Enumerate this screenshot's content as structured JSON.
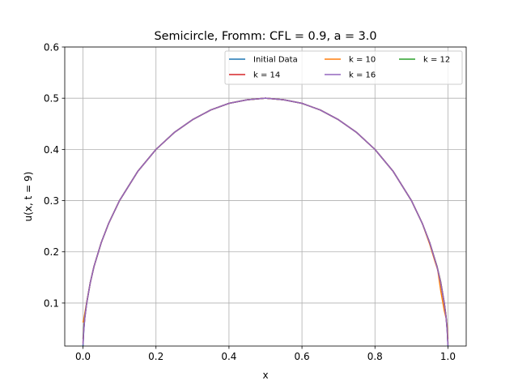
{
  "chart_data": {
    "type": "line",
    "title": "Semicircle, Fromm: CFL = 0.9, a = 3.0",
    "xlabel": "x",
    "ylabel": "u(x, t = 9)",
    "xlim": [
      -0.05,
      1.05
    ],
    "ylim": [
      0.016,
      0.6
    ],
    "xticks": [
      0.0,
      0.2,
      0.4,
      0.6,
      0.8,
      1.0
    ],
    "xtick_labels": [
      "0.0",
      "0.2",
      "0.4",
      "0.6",
      "0.8",
      "1.0"
    ],
    "yticks": [
      0.1,
      0.2,
      0.3,
      0.4,
      0.5,
      0.6
    ],
    "ytick_labels": [
      "0.1",
      "0.2",
      "0.3",
      "0.4",
      "0.5",
      "0.6"
    ],
    "grid": true,
    "legend_position": "top-right",
    "legend_columns": 3,
    "series": [
      {
        "name": "Initial Data",
        "color": "#1f77b4",
        "x": [
          0.0,
          0.002,
          0.005,
          0.01,
          0.02,
          0.03,
          0.05,
          0.07,
          0.1,
          0.15,
          0.2,
          0.25,
          0.3,
          0.35,
          0.4,
          0.45,
          0.5,
          0.55,
          0.6,
          0.65,
          0.7,
          0.75,
          0.8,
          0.85,
          0.9,
          0.93,
          0.95,
          0.97,
          0.98,
          0.99,
          0.995,
          0.998,
          1.0
        ],
        "y": [
          0.016,
          0.045,
          0.071,
          0.099,
          0.14,
          0.171,
          0.218,
          0.255,
          0.3,
          0.357,
          0.4,
          0.433,
          0.458,
          0.477,
          0.49,
          0.497,
          0.5,
          0.497,
          0.49,
          0.477,
          0.458,
          0.433,
          0.4,
          0.357,
          0.3,
          0.255,
          0.218,
          0.171,
          0.14,
          0.099,
          0.071,
          0.045,
          0.016
        ]
      },
      {
        "name": "k = 10",
        "color": "#ff7f0e",
        "x": [
          0.0,
          0.002,
          0.005,
          0.01,
          0.02,
          0.03,
          0.05,
          0.07,
          0.1,
          0.15,
          0.2,
          0.25,
          0.3,
          0.35,
          0.4,
          0.45,
          0.5,
          0.55,
          0.6,
          0.65,
          0.7,
          0.75,
          0.8,
          0.85,
          0.9,
          0.93,
          0.95,
          0.965,
          0.972,
          0.98,
          0.99,
          0.995,
          0.998,
          1.0
        ],
        "y": [
          0.062,
          0.068,
          0.08,
          0.101,
          0.14,
          0.171,
          0.218,
          0.255,
          0.3,
          0.357,
          0.4,
          0.433,
          0.458,
          0.477,
          0.49,
          0.497,
          0.5,
          0.497,
          0.49,
          0.477,
          0.458,
          0.433,
          0.4,
          0.357,
          0.3,
          0.255,
          0.215,
          0.18,
          0.165,
          0.125,
          0.085,
          0.07,
          0.055,
          0.03
        ]
      },
      {
        "name": "k = 12",
        "color": "#2ca02c",
        "x": [
          0.0,
          0.002,
          0.005,
          0.01,
          0.02,
          0.03,
          0.05,
          0.07,
          0.1,
          0.15,
          0.2,
          0.25,
          0.3,
          0.35,
          0.4,
          0.45,
          0.5,
          0.55,
          0.6,
          0.65,
          0.7,
          0.75,
          0.8,
          0.85,
          0.9,
          0.93,
          0.95,
          0.97,
          0.98,
          0.99,
          0.995,
          0.998,
          1.0
        ],
        "y": [
          0.03,
          0.052,
          0.074,
          0.1,
          0.14,
          0.171,
          0.218,
          0.255,
          0.3,
          0.357,
          0.4,
          0.433,
          0.458,
          0.477,
          0.49,
          0.497,
          0.5,
          0.497,
          0.49,
          0.477,
          0.458,
          0.433,
          0.4,
          0.357,
          0.3,
          0.255,
          0.218,
          0.172,
          0.142,
          0.1,
          0.073,
          0.05,
          0.022
        ]
      },
      {
        "name": "k = 14",
        "color": "#d62728",
        "x": [
          0.0,
          0.002,
          0.005,
          0.01,
          0.02,
          0.03,
          0.05,
          0.07,
          0.1,
          0.15,
          0.2,
          0.25,
          0.3,
          0.35,
          0.4,
          0.45,
          0.5,
          0.55,
          0.6,
          0.65,
          0.7,
          0.75,
          0.8,
          0.85,
          0.9,
          0.93,
          0.95,
          0.97,
          0.98,
          0.99,
          0.995,
          0.998,
          1.0
        ],
        "y": [
          0.022,
          0.048,
          0.072,
          0.099,
          0.14,
          0.171,
          0.218,
          0.255,
          0.3,
          0.357,
          0.4,
          0.433,
          0.458,
          0.477,
          0.49,
          0.497,
          0.5,
          0.497,
          0.49,
          0.477,
          0.458,
          0.433,
          0.4,
          0.357,
          0.3,
          0.255,
          0.218,
          0.171,
          0.141,
          0.1,
          0.072,
          0.047,
          0.019
        ]
      },
      {
        "name": "k = 16",
        "color": "#9467bd",
        "x": [
          0.0,
          0.002,
          0.005,
          0.01,
          0.02,
          0.03,
          0.05,
          0.07,
          0.1,
          0.15,
          0.2,
          0.25,
          0.3,
          0.35,
          0.4,
          0.45,
          0.5,
          0.55,
          0.6,
          0.65,
          0.7,
          0.75,
          0.8,
          0.85,
          0.9,
          0.93,
          0.95,
          0.97,
          0.98,
          0.99,
          0.995,
          0.998,
          1.0
        ],
        "y": [
          0.018,
          0.046,
          0.071,
          0.099,
          0.14,
          0.171,
          0.218,
          0.255,
          0.3,
          0.357,
          0.4,
          0.433,
          0.458,
          0.477,
          0.49,
          0.497,
          0.5,
          0.497,
          0.49,
          0.477,
          0.458,
          0.433,
          0.4,
          0.357,
          0.3,
          0.255,
          0.218,
          0.171,
          0.14,
          0.099,
          0.071,
          0.045,
          0.017
        ]
      }
    ]
  }
}
